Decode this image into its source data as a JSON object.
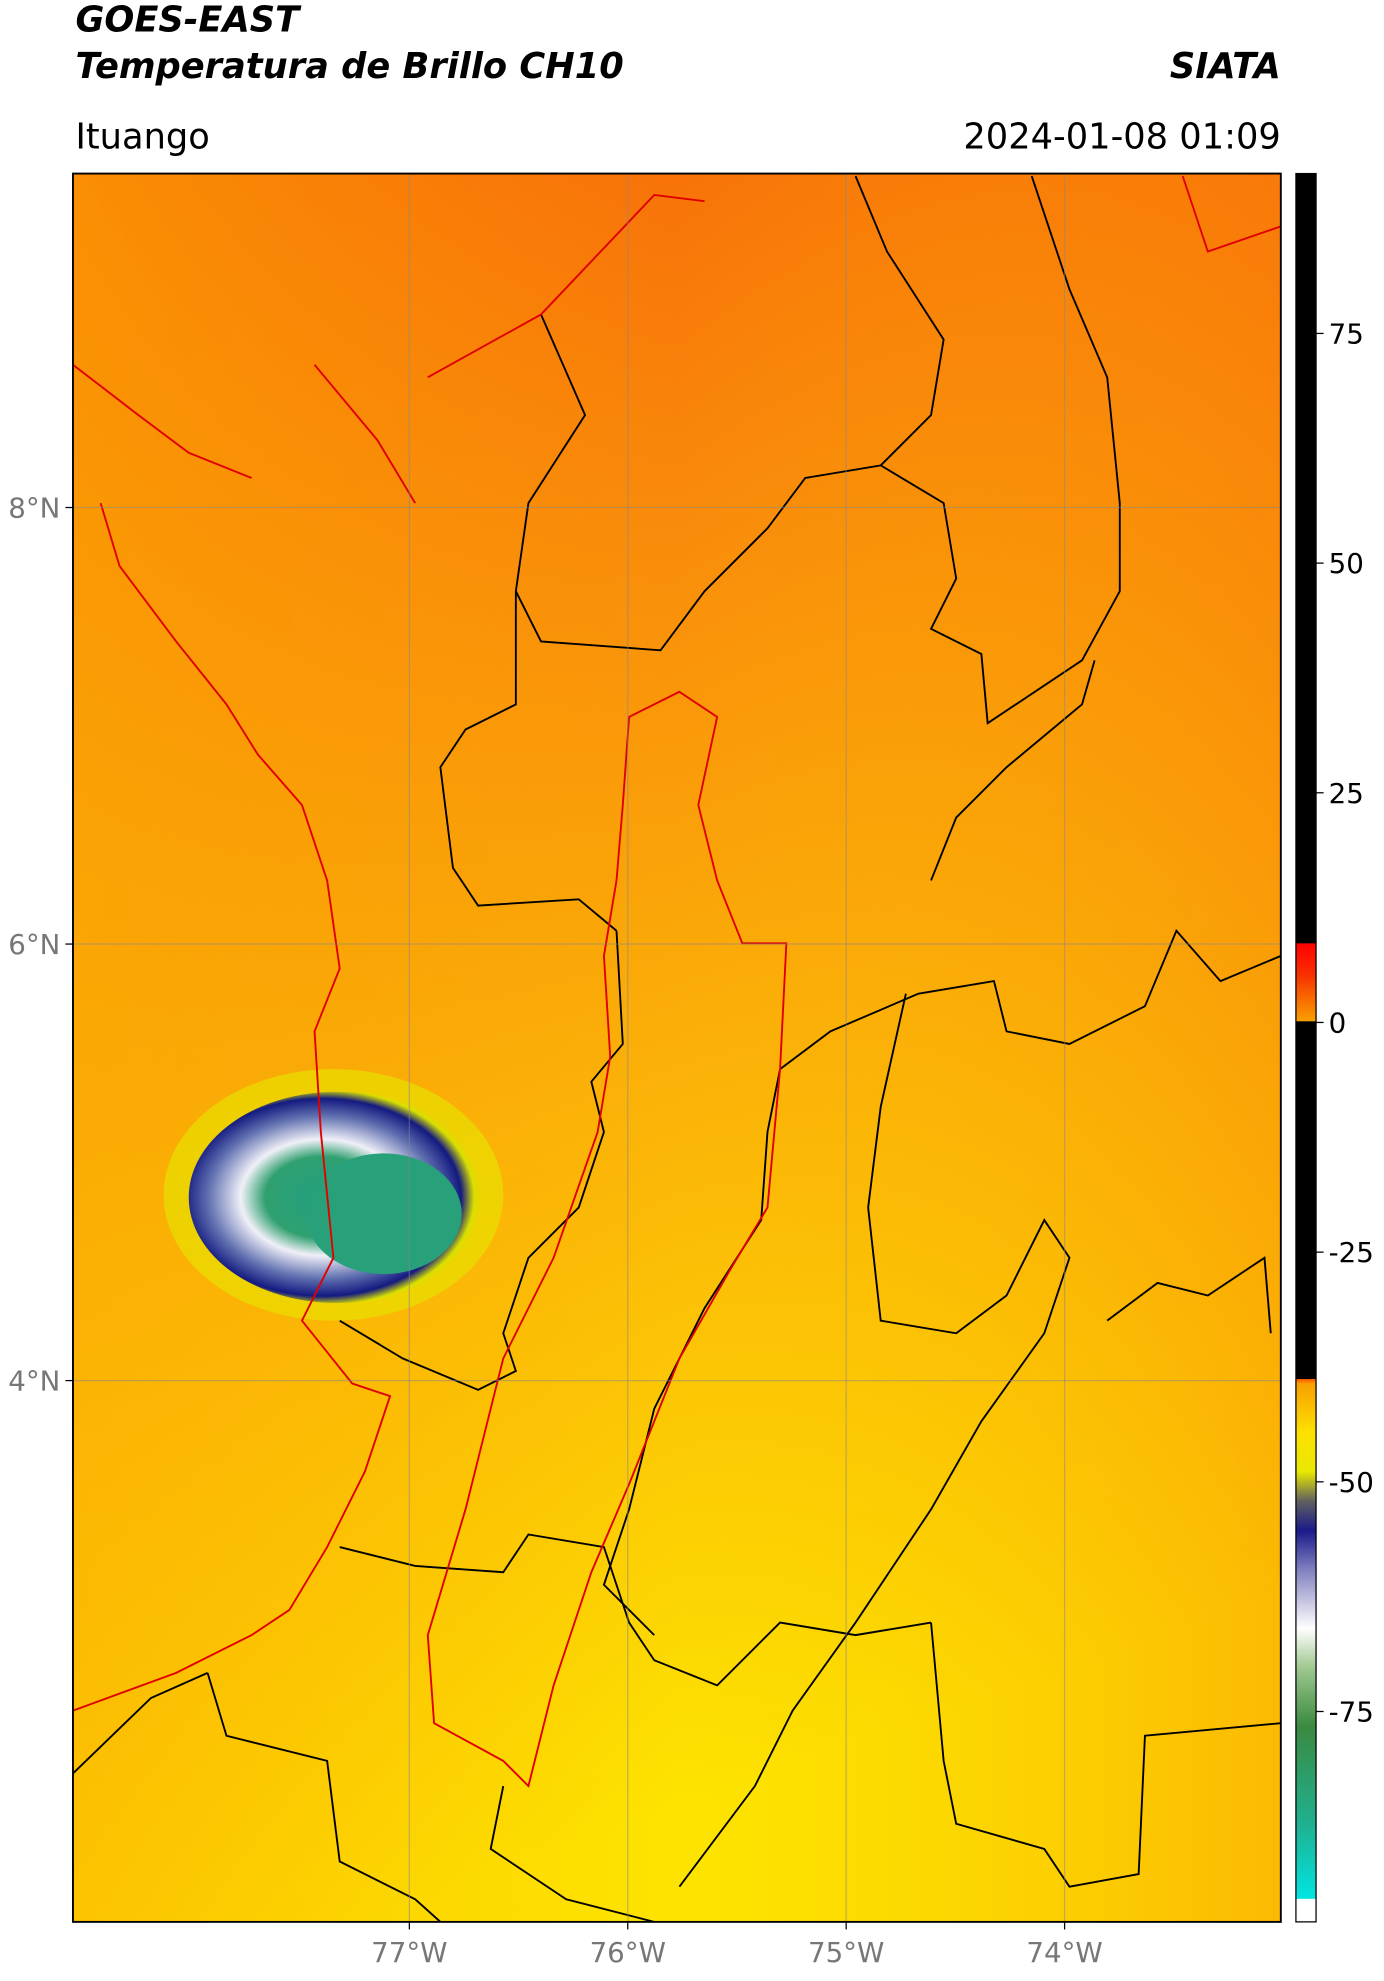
{
  "header": {
    "title": "GOES-EAST",
    "subtitle": "Temperatura de Brillo CH10",
    "brand": "SIATA",
    "location": "Ituango",
    "datetime": "2024-01-08 01:09"
  },
  "map": {
    "xlim": [
      -78.54,
      -73.01
    ],
    "ylim": [
      1.52,
      9.53
    ],
    "xticks": [
      {
        "value": -77,
        "label": "77°W"
      },
      {
        "value": -76,
        "label": "76°W"
      },
      {
        "value": -75,
        "label": "75°W"
      },
      {
        "value": -74,
        "label": "74°W"
      }
    ],
    "yticks": [
      {
        "value": 8,
        "label": "8°N"
      },
      {
        "value": 6,
        "label": "6°N"
      },
      {
        "value": 4,
        "label": "4°N"
      }
    ],
    "grid": true
  },
  "colorbar": {
    "lim": [
      -97.9,
      92.4
    ],
    "ticks": [
      75,
      50,
      25,
      0,
      -25,
      -50,
      -75
    ]
  }
}
